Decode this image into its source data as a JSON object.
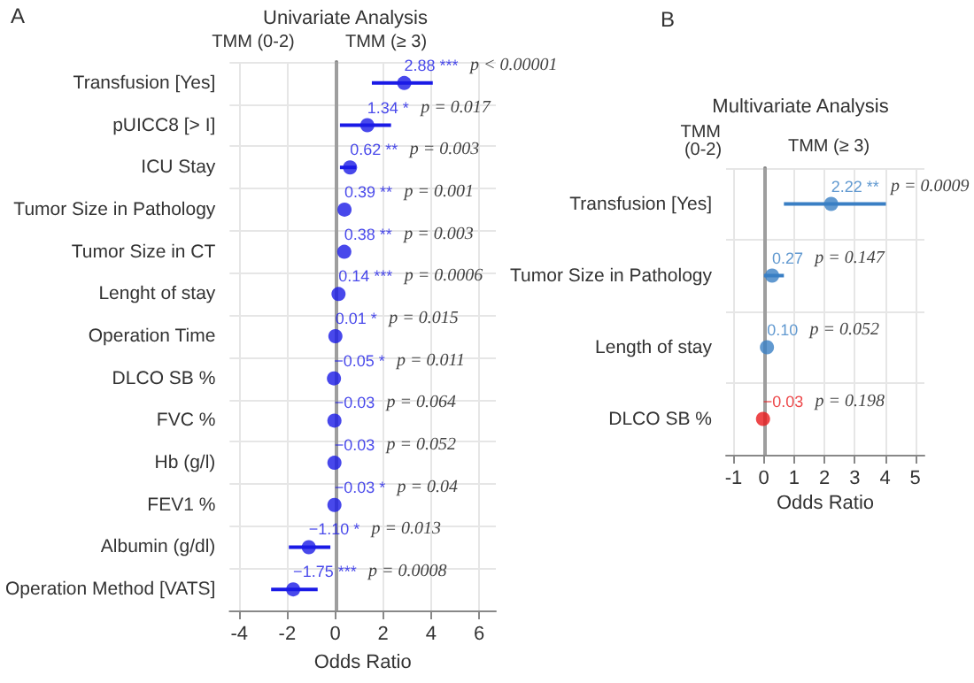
{
  "chart_data": [
    {
      "type": "scatter",
      "title": "Univariate Analysis",
      "xlabel": "Odds Ratio",
      "annotations": [
        "A",
        "TMM (0-2)",
        "TMM (≥ 3)",
        "p < 0.00001",
        "p = 0.017",
        "p = 0.003",
        "p = 0.001",
        "p = 0.003",
        "p = 0.0006",
        "p = 0.015",
        "p = 0.011",
        "p = 0.064",
        "p = 0.052",
        "p = 0.04",
        "p = 0.013",
        "p = 0.0008"
      ],
      "categories": [
        "Transfusion [Yes]",
        "pUICC8 [> I]",
        "ICU Stay",
        "Tumor Size in Pathology",
        "Tumor Size in CT",
        "Lenght of stay",
        "Operation Time",
        "DLCO SB %",
        "FVC %",
        "Hb (g/l)",
        "FEV1 %",
        "Albumin (g/dl)",
        "Operation Method [VATS]"
      ],
      "values": [
        2.88,
        1.34,
        0.62,
        0.39,
        0.38,
        0.14,
        0.01,
        -0.05,
        -0.03,
        -0.03,
        -0.03,
        -1.1,
        -1.75
      ],
      "value_labels": [
        "2.88 ***",
        "1.34 *",
        "0.62 **",
        "0.39 **",
        "0.38 **",
        "0.14 ***",
        "0.01 *",
        "−0.05 *",
        "−0.03",
        "−0.03",
        "−0.03 *",
        "−1.10 *",
        "−1.75 ***"
      ],
      "errors": [
        [
          1.53,
          4.07
        ],
        [
          0.2,
          2.33
        ],
        [
          0.2,
          0.87
        ],
        null,
        null,
        null,
        null,
        null,
        null,
        null,
        null,
        [
          -1.93,
          -0.2
        ],
        [
          -2.67,
          -0.73
        ]
      ],
      "color": "#1a1ae6",
      "xlim": [
        -4.4,
        6.7
      ],
      "xticks": [
        -4,
        -2,
        0,
        2,
        4,
        6
      ],
      "ref_lines": [
        {
          "axis": "x",
          "value": 0,
          "color": "#9e9e9e"
        }
      ],
      "grid": true,
      "marker": "circle",
      "orientation": "horizontal"
    },
    {
      "type": "scatter",
      "title": "Multivariate Analysis",
      "xlabel": "Odds Ratio",
      "annotations": [
        "B",
        "TMM (0-2)",
        "TMM (≥ 3)",
        "p = 0.0009",
        "p = 0.147",
        "p = 0.052",
        "p = 0.198"
      ],
      "categories": [
        "Transfusion [Yes]",
        "Tumor Size in Pathology",
        "Length of stay",
        "DLCO SB %"
      ],
      "values": [
        2.22,
        0.27,
        0.1,
        -0.03
      ],
      "value_labels": [
        "2.22 **",
        "0.27",
        "0.10",
        "−0.03"
      ],
      "errors": [
        [
          0.66,
          4.03
        ],
        [
          0.0,
          0.66
        ],
        null,
        null
      ],
      "colors": [
        "#3a7fc4",
        "#3a7fc4",
        "#3a7fc4",
        "#e8191c"
      ],
      "xlim": [
        -1.25,
        5.3
      ],
      "xticks": [
        -1,
        0,
        1,
        2,
        3,
        4,
        5
      ],
      "ref_lines": [
        {
          "axis": "x",
          "value": 0,
          "color": "#9e9e9e"
        }
      ],
      "grid": true,
      "marker": "circle",
      "orientation": "horizontal"
    }
  ]
}
